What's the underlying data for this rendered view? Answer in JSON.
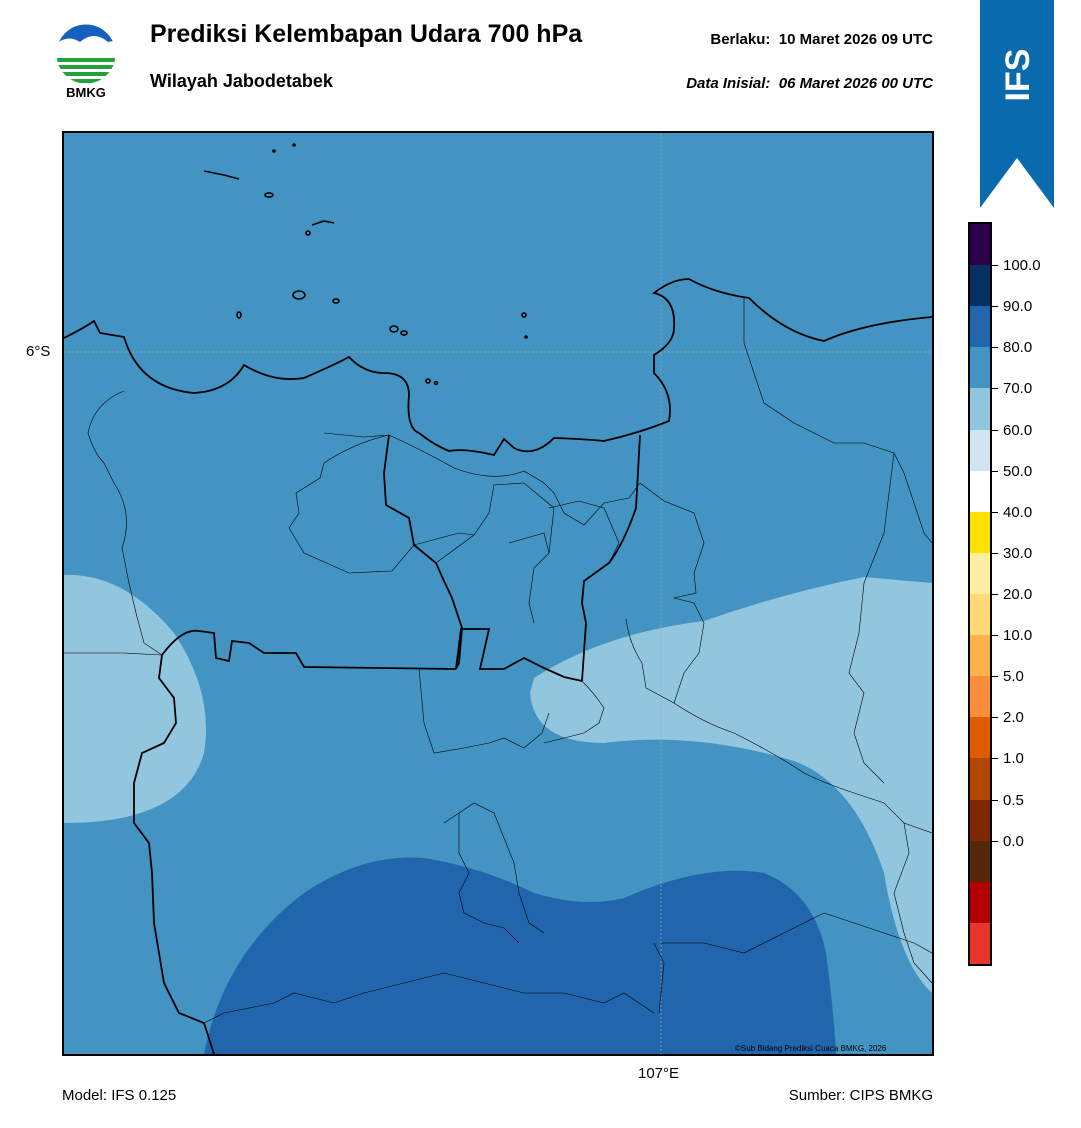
{
  "header": {
    "title": "Prediksi Kelembapan Udara 700 hPa",
    "subtitle": "Wilayah Jabodetabek",
    "valid_label": "Berlaku:",
    "valid_value": "10 Maret 2026 09 UTC",
    "initial_label": "Data Inisial:",
    "initial_value": "06 Maret 2026 00 UTC"
  },
  "logo": {
    "text": "BMKG",
    "icon": "bmkg-logo-icon"
  },
  "ribbon": {
    "text": "IFS",
    "color": "#0A6AAE"
  },
  "map": {
    "lat_label": "6°S",
    "lon_label": "107°E",
    "credit": "©Sub Bidang Prediksi Cuaca BMKG, 2026",
    "fill_colors": {
      "70-80": "#4393C3",
      "60-70": "#92C5DE",
      "80-90": "#2166AC"
    }
  },
  "footer": {
    "model": "Model: IFS 0.125",
    "source": "Sumber: CIPS BMKG"
  },
  "colorbar": {
    "labels": [
      "100.0",
      "90.0",
      "80.0",
      "70.0",
      "60.0",
      "50.0",
      "40.0",
      "30.0",
      "20.0",
      "10.0",
      "5.0",
      "2.0",
      "1.0",
      "0.5",
      "0.0"
    ],
    "colors": [
      "#2D004B",
      "#053061",
      "#2166AC",
      "#4393C3",
      "#92C5DE",
      "#D1E5F0",
      "#FFFFFF",
      "#FFE100",
      "#FFEDA0",
      "#FED976",
      "#FEB24C",
      "#FD8D3C",
      "#E05A00",
      "#B34700",
      "#7F2704",
      "#54260A",
      "#B30000",
      "#E7352C"
    ]
  }
}
